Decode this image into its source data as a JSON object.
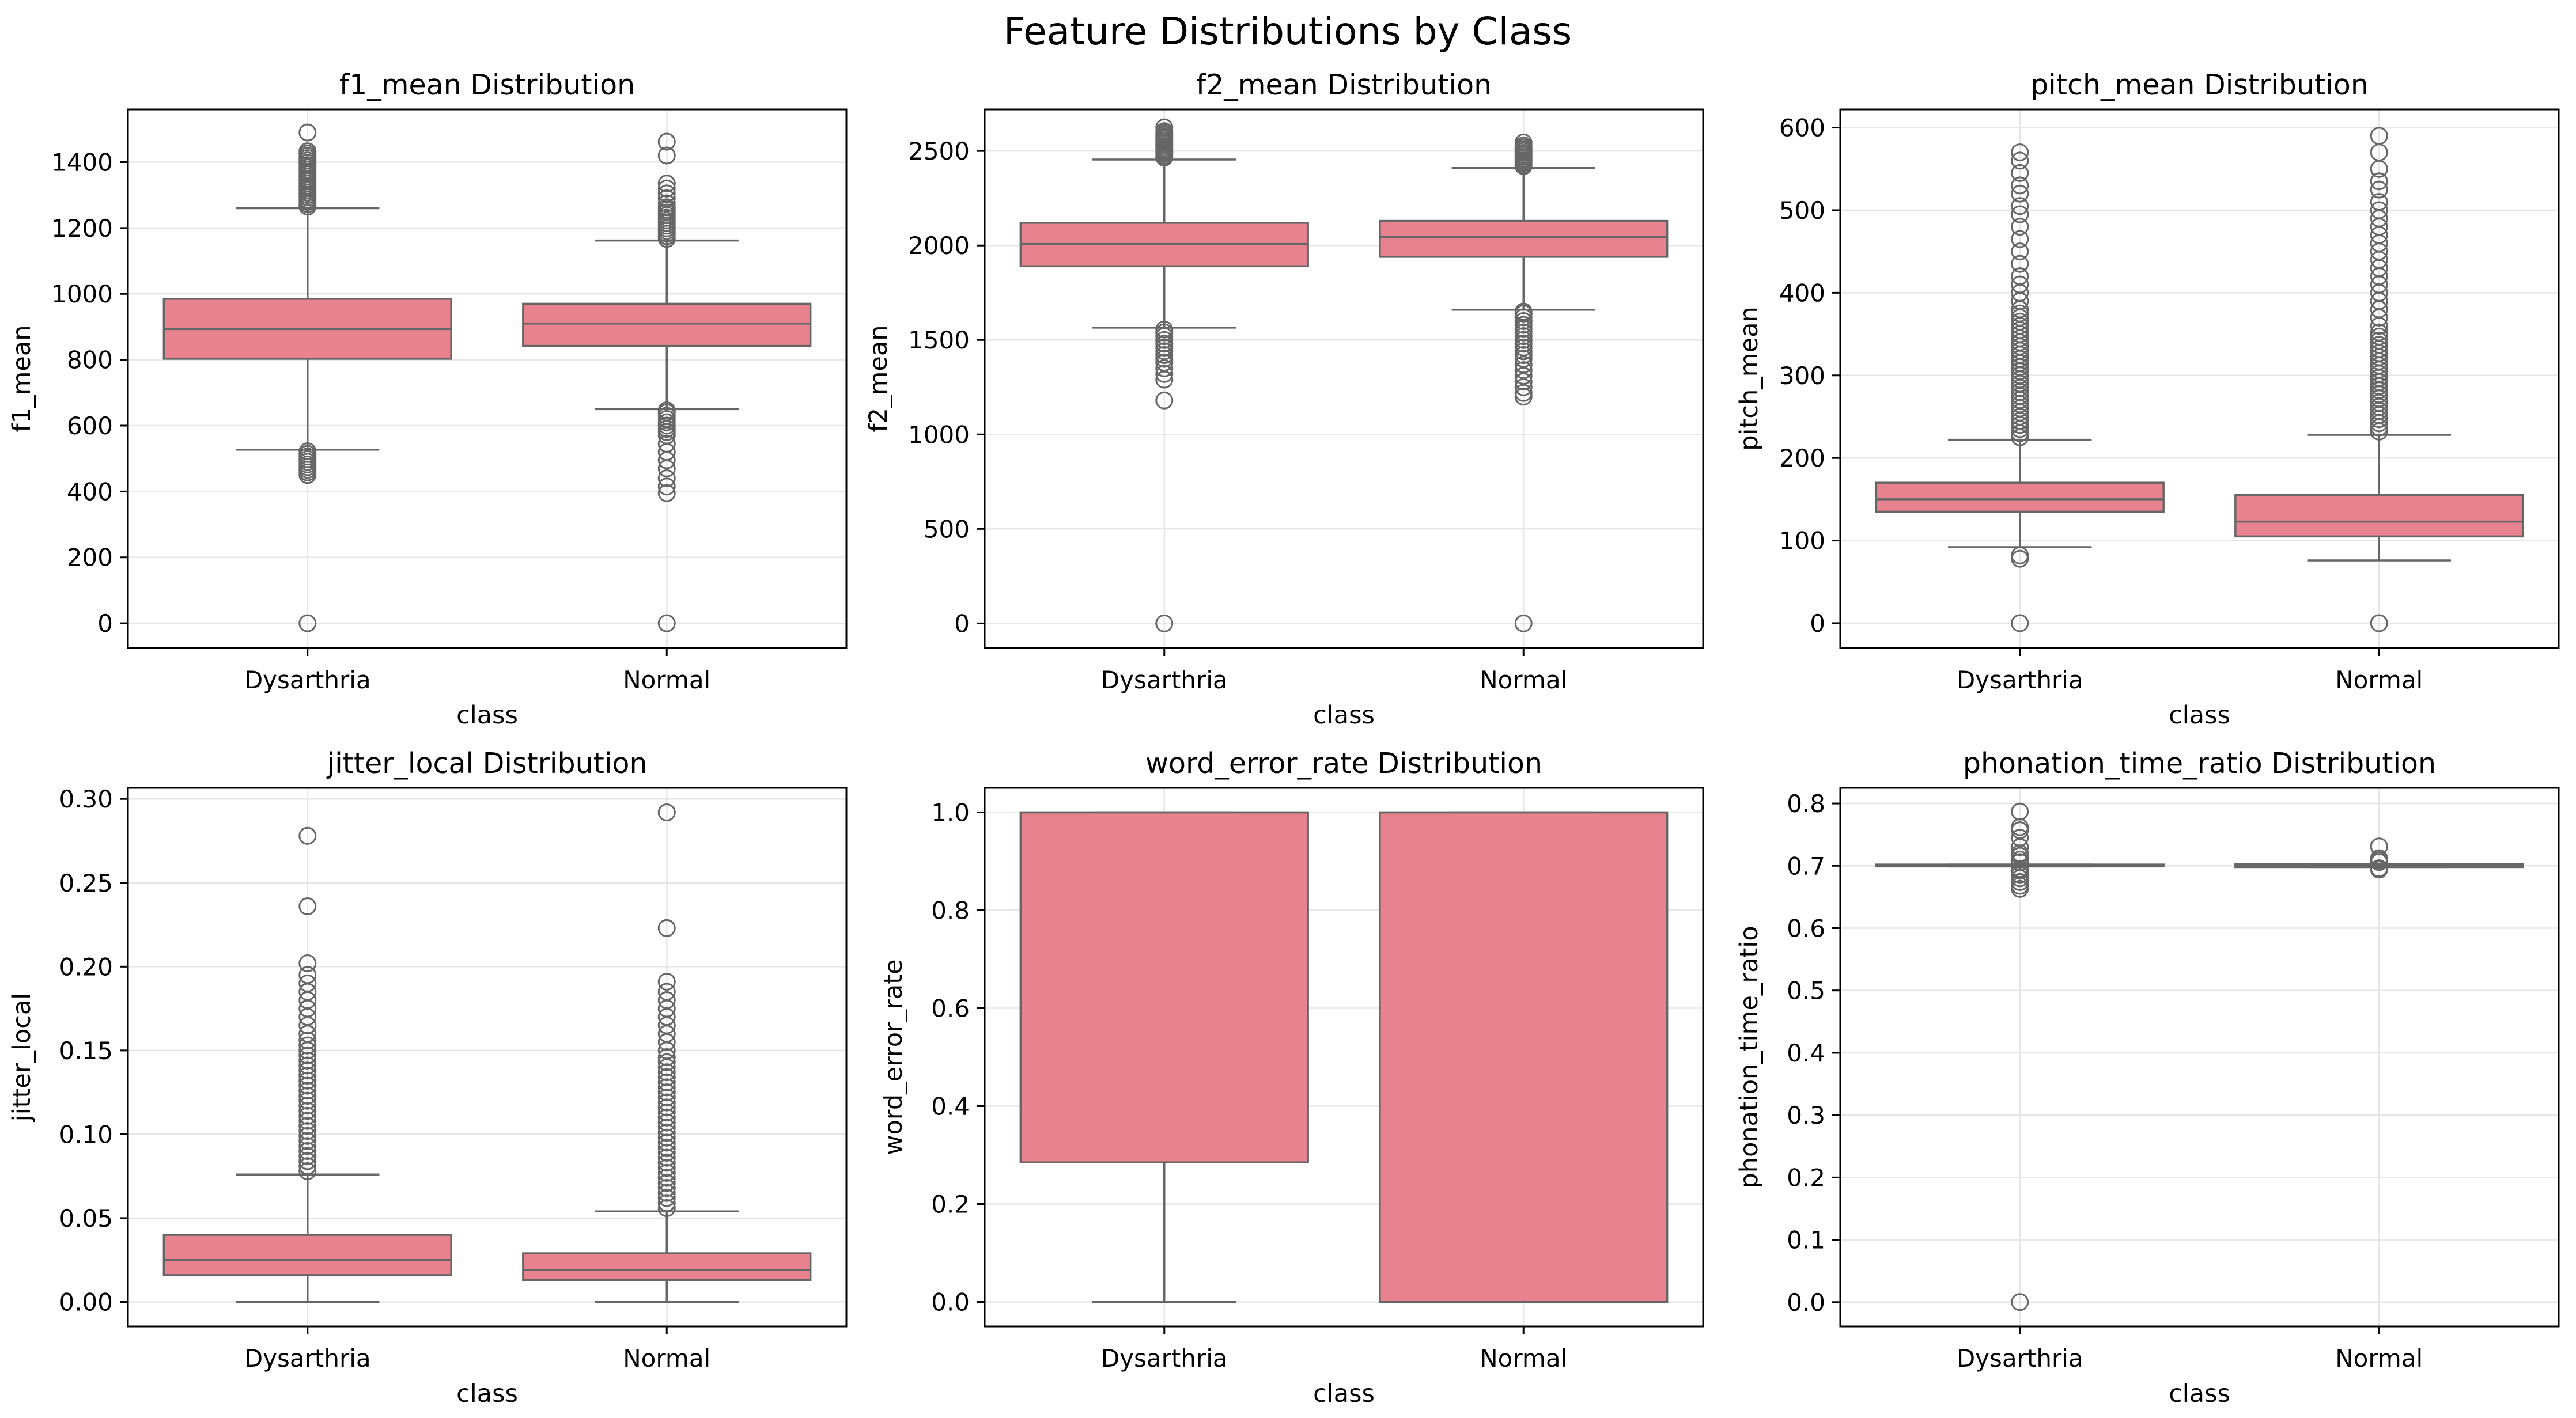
{
  "figure": {
    "title": "Feature Distributions by Class",
    "box_color": "#e8828f",
    "line_color": "#666666",
    "grid_color": "#e6e6e6"
  },
  "chart_data": [
    {
      "type": "boxplot",
      "title": "f1_mean Distribution",
      "xlabel": "class",
      "ylabel": "f1_mean",
      "categories": [
        "Dysarthria",
        "Normal"
      ],
      "ylim": [
        -75,
        1560
      ],
      "yticks": [
        0,
        200,
        400,
        600,
        800,
        1000,
        1200,
        1400
      ],
      "grid": true,
      "boxes": [
        {
          "whislo": 527,
          "q1": 803,
          "med": 893,
          "q3": 985,
          "whishi": 1260,
          "fliers": [
            0,
            450,
            458,
            466,
            474,
            482,
            490,
            498,
            506,
            514,
            522,
            1265,
            1272,
            1279,
            1286,
            1293,
            1300,
            1307,
            1314,
            1321,
            1328,
            1335,
            1342,
            1349,
            1356,
            1363,
            1370,
            1377,
            1384,
            1391,
            1398,
            1405,
            1412,
            1419,
            1426,
            1433,
            1490
          ]
        },
        {
          "whislo": 650,
          "q1": 842,
          "med": 910,
          "q3": 970,
          "whishi": 1162,
          "fliers": [
            0,
            395,
            415,
            440,
            470,
            495,
            520,
            545,
            570,
            580,
            590,
            600,
            610,
            620,
            630,
            640,
            646,
            1167,
            1175,
            1183,
            1191,
            1199,
            1207,
            1215,
            1223,
            1231,
            1239,
            1247,
            1255,
            1263,
            1275,
            1290,
            1305,
            1320,
            1335,
            1420,
            1462
          ]
        }
      ]
    },
    {
      "type": "boxplot",
      "title": "f2_mean Distribution",
      "xlabel": "class",
      "ylabel": "f2_mean",
      "categories": [
        "Dysarthria",
        "Normal"
      ],
      "ylim": [
        -130,
        2720
      ],
      "yticks": [
        0,
        500,
        1000,
        1500,
        2000,
        2500
      ],
      "grid": true,
      "boxes": [
        {
          "whislo": 1565,
          "q1": 1890,
          "med": 2008,
          "q3": 2120,
          "whishi": 2455,
          "fliers": [
            0,
            1180,
            1290,
            1320,
            1350,
            1380,
            1400,
            1420,
            1440,
            1460,
            1480,
            1500,
            1520,
            1540,
            1555,
            2465,
            2475,
            2485,
            2495,
            2505,
            2515,
            2525,
            2535,
            2545,
            2555,
            2565,
            2575,
            2585,
            2595,
            2605,
            2625
          ]
        },
        {
          "whislo": 1660,
          "q1": 1940,
          "med": 2045,
          "q3": 2130,
          "whishi": 2410,
          "fliers": [
            0,
            1200,
            1220,
            1250,
            1280,
            1310,
            1340,
            1370,
            1400,
            1420,
            1440,
            1460,
            1480,
            1500,
            1520,
            1540,
            1560,
            1580,
            1600,
            1620,
            1640,
            1650,
            2420,
            2430,
            2440,
            2450,
            2460,
            2470,
            2480,
            2490,
            2500,
            2510,
            2520,
            2530,
            2545
          ]
        }
      ]
    },
    {
      "type": "boxplot",
      "title": "pitch_mean Distribution",
      "xlabel": "class",
      "ylabel": "pitch_mean",
      "categories": [
        "Dysarthria",
        "Normal"
      ],
      "ylim": [
        -30,
        622
      ],
      "yticks": [
        0,
        100,
        200,
        300,
        400,
        500,
        600
      ],
      "grid": true,
      "boxes": [
        {
          "whislo": 92,
          "q1": 135,
          "med": 150,
          "q3": 170,
          "whishi": 222,
          "fliers": [
            0,
            78,
            82,
            225,
            230,
            235,
            240,
            245,
            250,
            255,
            260,
            265,
            270,
            275,
            280,
            285,
            290,
            295,
            300,
            305,
            310,
            315,
            320,
            325,
            330,
            335,
            340,
            345,
            350,
            355,
            360,
            365,
            370,
            375,
            380,
            390,
            400,
            410,
            420,
            435,
            450,
            465,
            480,
            495,
            505,
            520,
            530,
            545,
            560,
            570
          ]
        },
        {
          "whislo": 76,
          "q1": 105,
          "med": 123,
          "q3": 155,
          "whishi": 228,
          "fliers": [
            0,
            232,
            237,
            242,
            247,
            252,
            257,
            262,
            267,
            272,
            277,
            282,
            287,
            292,
            297,
            302,
            307,
            312,
            317,
            322,
            327,
            332,
            337,
            342,
            347,
            352,
            360,
            370,
            380,
            390,
            400,
            410,
            420,
            430,
            440,
            450,
            460,
            470,
            480,
            490,
            500,
            510,
            525,
            535,
            550,
            570,
            590
          ]
        }
      ]
    },
    {
      "type": "boxplot",
      "title": "jitter_local Distribution",
      "xlabel": "class",
      "ylabel": "jitter_local",
      "categories": [
        "Dysarthria",
        "Normal"
      ],
      "ylim": [
        -0.0146,
        0.3066
      ],
      "yticks": [
        0.0,
        0.05,
        0.1,
        0.15,
        0.2,
        0.25,
        0.3
      ],
      "ytick_labels": [
        "0.00",
        "0.05",
        "0.10",
        "0.15",
        "0.20",
        "0.25",
        "0.30"
      ],
      "grid": true,
      "boxes": [
        {
          "whislo": 0.0,
          "q1": 0.016,
          "med": 0.025,
          "q3": 0.04,
          "whishi": 0.076,
          "fliers": [
            0.078,
            0.081,
            0.084,
            0.087,
            0.09,
            0.093,
            0.096,
            0.099,
            0.102,
            0.105,
            0.108,
            0.111,
            0.114,
            0.117,
            0.12,
            0.123,
            0.126,
            0.129,
            0.132,
            0.135,
            0.138,
            0.141,
            0.144,
            0.147,
            0.15,
            0.153,
            0.156,
            0.16,
            0.165,
            0.17,
            0.175,
            0.18,
            0.185,
            0.19,
            0.195,
            0.202,
            0.236,
            0.278
          ]
        },
        {
          "whislo": 0.0,
          "q1": 0.013,
          "med": 0.019,
          "q3": 0.029,
          "whishi": 0.054,
          "fliers": [
            0.056,
            0.059,
            0.062,
            0.065,
            0.068,
            0.071,
            0.074,
            0.077,
            0.08,
            0.083,
            0.086,
            0.089,
            0.092,
            0.095,
            0.098,
            0.101,
            0.104,
            0.107,
            0.11,
            0.113,
            0.116,
            0.119,
            0.122,
            0.125,
            0.128,
            0.131,
            0.134,
            0.137,
            0.14,
            0.143,
            0.146,
            0.15,
            0.155,
            0.16,
            0.165,
            0.17,
            0.175,
            0.18,
            0.185,
            0.191,
            0.223,
            0.292
          ]
        }
      ]
    },
    {
      "type": "boxplot",
      "title": "word_error_rate Distribution",
      "xlabel": "class",
      "ylabel": "word_error_rate",
      "categories": [
        "Dysarthria",
        "Normal"
      ],
      "ylim": [
        -0.05,
        1.05
      ],
      "yticks": [
        0.0,
        0.2,
        0.4,
        0.6,
        0.8,
        1.0
      ],
      "ytick_labels": [
        "0.0",
        "0.2",
        "0.4",
        "0.6",
        "0.8",
        "1.0"
      ],
      "grid": true,
      "boxes": [
        {
          "whislo": 0.0,
          "q1": 0.285,
          "med": 1.0,
          "q3": 1.0,
          "whishi": 1.0,
          "fliers": []
        },
        {
          "whislo": 0.0,
          "q1": 0.0,
          "med": 1.0,
          "q3": 1.0,
          "whishi": 1.0,
          "fliers": []
        }
      ]
    },
    {
      "type": "boxplot",
      "title": "phonation_time_ratio Distribution",
      "xlabel": "class",
      "ylabel": "phonation_time_ratio",
      "categories": [
        "Dysarthria",
        "Normal"
      ],
      "ylim": [
        -0.039,
        0.825
      ],
      "yticks": [
        0.0,
        0.1,
        0.2,
        0.3,
        0.4,
        0.5,
        0.6,
        0.7,
        0.8
      ],
      "ytick_labels": [
        "0.0",
        "0.1",
        "0.2",
        "0.3",
        "0.4",
        "0.5",
        "0.6",
        "0.7",
        "0.8"
      ],
      "grid": true,
      "boxes": [
        {
          "whislo": 0.699,
          "q1": 0.699,
          "med": 0.7,
          "q3": 0.702,
          "whishi": 0.702,
          "fliers": [
            0.0,
            0.663,
            0.668,
            0.674,
            0.68,
            0.686,
            0.692,
            0.695,
            0.706,
            0.71,
            0.716,
            0.72,
            0.73,
            0.745,
            0.757,
            0.762,
            0.787
          ]
        },
        {
          "whislo": 0.698,
          "q1": 0.698,
          "med": 0.7,
          "q3": 0.703,
          "whishi": 0.703,
          "fliers": [
            0.694,
            0.696,
            0.706,
            0.709,
            0.712,
            0.731
          ]
        }
      ]
    }
  ]
}
